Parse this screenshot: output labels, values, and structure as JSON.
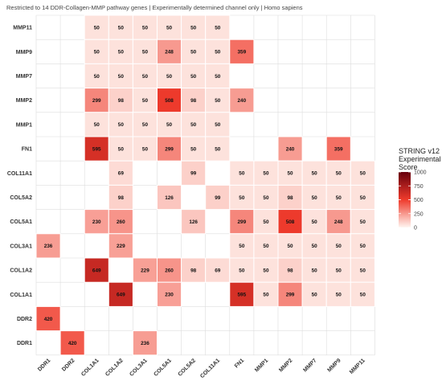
{
  "chart_data": {
    "type": "heatmap",
    "subtitle": "Restricted to 14 DDR-Collagen-MMP pathway genes | Experimentally determined channel only | Homo sapiens",
    "x_categories": [
      "DDR1",
      "DDR2",
      "COL1A1",
      "COL1A2",
      "COL3A1",
      "COL5A1",
      "COL5A2",
      "COL11A1",
      "FN1",
      "MMP1",
      "MMP2",
      "MMP7",
      "MMP9",
      "MMP11"
    ],
    "y_categories": [
      "MMP11",
      "MMP9",
      "MMP7",
      "MMP2",
      "MMP1",
      "FN1",
      "COL11A1",
      "COL5A2",
      "COL5A1",
      "COL3A1",
      "COL1A2",
      "COL1A1",
      "DDR2",
      "DDR1"
    ],
    "rows": [
      [
        null,
        null,
        50,
        50,
        50,
        50,
        50,
        50,
        null,
        null,
        null,
        null,
        null,
        null
      ],
      [
        null,
        null,
        50,
        50,
        50,
        248,
        50,
        50,
        359,
        null,
        null,
        null,
        null,
        null
      ],
      [
        null,
        null,
        50,
        50,
        50,
        50,
        50,
        50,
        null,
        null,
        null,
        null,
        null,
        null
      ],
      [
        null,
        null,
        299,
        98,
        50,
        508,
        98,
        50,
        240,
        null,
        null,
        null,
        null,
        null
      ],
      [
        null,
        null,
        50,
        50,
        50,
        50,
        50,
        50,
        null,
        null,
        null,
        null,
        null,
        null
      ],
      [
        null,
        null,
        595,
        50,
        50,
        299,
        50,
        50,
        null,
        null,
        240,
        null,
        359,
        null
      ],
      [
        null,
        null,
        null,
        69,
        null,
        null,
        99,
        null,
        50,
        50,
        50,
        50,
        50,
        50
      ],
      [
        null,
        null,
        null,
        98,
        null,
        126,
        null,
        99,
        50,
        50,
        98,
        50,
        50,
        50
      ],
      [
        null,
        null,
        230,
        260,
        null,
        null,
        126,
        null,
        299,
        50,
        508,
        50,
        248,
        50
      ],
      [
        236,
        null,
        null,
        229,
        null,
        null,
        null,
        null,
        50,
        50,
        50,
        50,
        50,
        50
      ],
      [
        null,
        null,
        649,
        null,
        229,
        260,
        98,
        69,
        50,
        50,
        98,
        50,
        50,
        50
      ],
      [
        null,
        null,
        null,
        649,
        null,
        230,
        null,
        null,
        595,
        50,
        299,
        50,
        50,
        50
      ],
      [
        420,
        null,
        null,
        null,
        null,
        null,
        null,
        null,
        null,
        null,
        null,
        null,
        null,
        null
      ],
      [
        null,
        420,
        null,
        null,
        236,
        null,
        null,
        null,
        null,
        null,
        null,
        null,
        null,
        null
      ]
    ],
    "color_scale": {
      "min": 0,
      "max": 1000,
      "low_color": "#fff5f0",
      "mid_color": "#ef3b2c",
      "high_color": "#67000d"
    },
    "legend": {
      "title_lines": [
        "STRING v12",
        "Experimental",
        "Score"
      ],
      "ticks": [
        1000,
        750,
        500,
        250,
        0
      ],
      "position": "right"
    },
    "grid": true
  }
}
